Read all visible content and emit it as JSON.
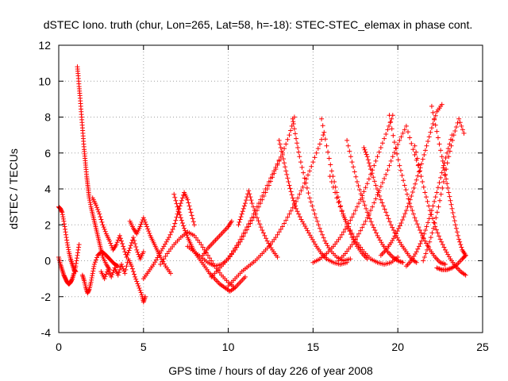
{
  "chart_data": {
    "type": "scatter",
    "title": "dSTEC Iono. truth (chur, Lon=265, Lat=58, h=-18): STEC-STEC_elemax in phase cont.",
    "xlabel": "GPS time / hours of day 226 of year 2008",
    "ylabel": "dSTEC  / TECUs",
    "xlim": [
      0,
      25
    ],
    "ylim": [
      -4,
      12
    ],
    "xticks": [
      0,
      5,
      10,
      15,
      20,
      25
    ],
    "yticks": [
      -4,
      -2,
      0,
      2,
      4,
      6,
      8,
      10,
      12
    ],
    "grid": true,
    "marker": "plus",
    "color": "#ff0000",
    "series": [
      {
        "name": "",
        "x": [
          0.0,
          0.1,
          0.2,
          0.3,
          0.4,
          0.5,
          0.6,
          0.7,
          0.8,
          0.9,
          1.0
        ],
        "y": [
          3.0,
          2.9,
          2.7,
          2.2,
          1.6,
          1.0,
          0.5,
          0.1,
          -0.2,
          -0.5,
          -0.6
        ]
      },
      {
        "name": "",
        "x": [
          0.0,
          0.1,
          0.2,
          0.3,
          0.4,
          0.5,
          0.6,
          0.7,
          0.8,
          0.9,
          1.0,
          1.1,
          1.2
        ],
        "y": [
          0.2,
          -0.2,
          -0.5,
          -0.8,
          -1.0,
          -1.2,
          -1.3,
          -1.2,
          -1.0,
          -0.7,
          -0.3,
          0.3,
          0.9
        ]
      },
      {
        "name": "",
        "x": [
          1.1,
          1.15,
          1.2,
          1.25,
          1.3,
          1.35,
          1.4,
          1.45,
          1.5,
          1.55,
          1.6,
          1.65,
          1.7,
          1.75,
          1.8,
          1.9,
          2.0,
          2.1,
          2.2,
          2.3,
          2.4,
          2.5,
          2.6,
          2.8,
          3.0
        ],
        "y": [
          10.8,
          10.3,
          9.7,
          9.2,
          8.6,
          8.0,
          7.4,
          6.8,
          6.2,
          5.7,
          5.2,
          4.7,
          4.3,
          3.9,
          3.5,
          3.0,
          2.6,
          2.2,
          1.8,
          1.4,
          1.0,
          0.6,
          0.2,
          -0.2,
          -0.5
        ]
      },
      {
        "name": "",
        "x": [
          1.4,
          1.5,
          1.6,
          1.7,
          1.8,
          1.9,
          2.0,
          2.1,
          2.3,
          2.5,
          2.7,
          2.9,
          3.1,
          3.3,
          3.5
        ],
        "y": [
          -0.8,
          -1.1,
          -1.5,
          -1.8,
          -1.6,
          -1.2,
          -0.7,
          -0.2,
          0.3,
          0.5,
          0.4,
          0.2,
          0.0,
          -0.2,
          -0.3
        ]
      },
      {
        "name": "",
        "x": [
          2.0,
          2.2,
          2.4,
          2.6,
          2.8,
          3.0,
          3.2,
          3.4,
          3.6,
          3.8,
          4.0,
          4.2,
          4.4,
          4.6,
          4.8,
          5.0
        ],
        "y": [
          3.5,
          3.1,
          2.6,
          2.0,
          1.5,
          1.1,
          0.6,
          0.9,
          1.4,
          0.8,
          0.2,
          0.7,
          1.3,
          0.6,
          0.1,
          0.5
        ]
      },
      {
        "name": "",
        "x": [
          2.5,
          2.7,
          2.9,
          3.1,
          3.3,
          3.5,
          3.7,
          3.9,
          4.1,
          4.3,
          4.5,
          4.7,
          4.9,
          5.0,
          5.1
        ],
        "y": [
          -0.6,
          -1.0,
          -0.5,
          -0.9,
          -0.4,
          -0.8,
          -0.2,
          -0.7,
          0.1,
          -0.3,
          -0.9,
          -1.4,
          -1.9,
          -2.3,
          -2.0
        ]
      },
      {
        "name": "",
        "x": [
          4.2,
          4.4,
          4.6,
          4.8,
          5.0,
          5.2,
          5.4,
          5.6,
          5.8,
          6.0,
          6.3,
          6.6
        ],
        "y": [
          2.2,
          1.8,
          1.5,
          1.9,
          2.4,
          1.9,
          1.4,
          1.0,
          0.6,
          0.2,
          -0.3,
          -0.7
        ]
      },
      {
        "name": "",
        "x": [
          5.0,
          5.3,
          5.6,
          5.9,
          6.2,
          6.5,
          6.8,
          7.0,
          7.2,
          7.4,
          7.6,
          7.8,
          8.0
        ],
        "y": [
          -1.0,
          -0.6,
          -0.2,
          0.3,
          0.8,
          1.3,
          1.9,
          2.6,
          3.2,
          3.8,
          3.4,
          2.7,
          2.0
        ]
      },
      {
        "name": "",
        "x": [
          6.8,
          7.0,
          7.2,
          7.4,
          7.6,
          7.8,
          8.0,
          8.3,
          8.6,
          8.9,
          9.2,
          9.5,
          9.8,
          10.1,
          10.4,
          10.7,
          11.0
        ],
        "y": [
          3.7,
          3.0,
          2.4,
          1.8,
          1.3,
          0.9,
          0.5,
          0.1,
          -0.3,
          -0.7,
          -1.0,
          -1.3,
          -1.5,
          -1.7,
          -1.5,
          -1.2,
          -0.9
        ]
      },
      {
        "name": "",
        "x": [
          6.0,
          6.4,
          6.8,
          7.2,
          7.6,
          8.0,
          8.4,
          8.8,
          9.2,
          9.6,
          10.0,
          10.4
        ],
        "y": [
          -0.2,
          0.4,
          0.9,
          1.3,
          1.6,
          1.4,
          0.9,
          0.3,
          -0.3,
          -0.8,
          -1.2,
          -1.5
        ]
      },
      {
        "name": "",
        "x": [
          7.6,
          8.0,
          8.4,
          8.8,
          9.2,
          9.6,
          10.0,
          10.4,
          10.8,
          11.2,
          11.6,
          12.0,
          12.4,
          12.8,
          13.2,
          13.6,
          13.9
        ],
        "y": [
          0.8,
          0.5,
          0.2,
          -0.1,
          -0.3,
          -0.2,
          0.1,
          0.6,
          1.2,
          1.9,
          2.6,
          3.4,
          4.2,
          5.1,
          6.0,
          7.0,
          8.0
        ]
      },
      {
        "name": "",
        "x": [
          8.5,
          8.8,
          9.1,
          9.4,
          9.7,
          10.0,
          10.2
        ],
        "y": [
          0.3,
          0.7,
          1.0,
          1.3,
          1.6,
          1.9,
          2.2
        ]
      },
      {
        "name": "",
        "x": [
          10.0,
          10.4,
          10.8,
          11.2,
          11.6,
          12.0,
          12.4,
          12.8,
          13.2,
          13.6,
          14.0,
          14.4,
          14.8,
          15.2,
          15.6
        ],
        "y": [
          -1.4,
          -1.0,
          -0.6,
          -0.3,
          0.0,
          0.4,
          0.8,
          1.3,
          1.9,
          2.6,
          3.3,
          4.1,
          5.0,
          6.0,
          7.0
        ]
      },
      {
        "name": "",
        "x": [
          9.0,
          9.4,
          9.8,
          10.2,
          10.6,
          11.0,
          11.4,
          11.8,
          12.2,
          12.6,
          13.0
        ],
        "y": [
          -0.9,
          -0.5,
          -0.1,
          0.4,
          1.0,
          1.7,
          2.4,
          3.2,
          4.0,
          4.8,
          5.6
        ]
      },
      {
        "name": "",
        "x": [
          10.6,
          10.8,
          11.0,
          11.2,
          11.4,
          11.7,
          12.0,
          12.3,
          12.6,
          12.9
        ],
        "y": [
          2.0,
          2.6,
          3.2,
          3.9,
          3.2,
          2.4,
          1.7,
          1.1,
          0.6,
          0.2
        ]
      },
      {
        "name": "",
        "x": [
          13.0,
          13.2,
          13.4,
          13.6,
          13.8,
          14.0,
          14.3,
          14.6,
          14.9,
          15.2,
          15.5,
          15.8,
          16.2,
          16.6,
          17.0
        ],
        "y": [
          6.7,
          5.9,
          5.0,
          4.2,
          3.5,
          2.9,
          2.3,
          1.8,
          1.3,
          0.8,
          0.4,
          0.1,
          -0.1,
          -0.2,
          -0.1
        ]
      },
      {
        "name": "",
        "x": [
          13.8,
          14.0,
          14.2,
          14.5,
          14.8,
          15.1,
          15.4,
          15.7,
          16.0,
          16.4,
          16.8,
          17.2
        ],
        "y": [
          7.9,
          6.8,
          5.8,
          4.6,
          3.5,
          2.6,
          1.8,
          1.1,
          0.6,
          0.2,
          0.0,
          0.1
        ]
      },
      {
        "name": "",
        "x": [
          15.0,
          15.4,
          15.8,
          16.2,
          16.6,
          17.0,
          17.4,
          17.8,
          18.2,
          18.6,
          19.0,
          19.4,
          19.7
        ],
        "y": [
          -0.1,
          0.1,
          0.4,
          0.8,
          1.3,
          1.9,
          2.6,
          3.4,
          4.3,
          5.3,
          6.3,
          7.3,
          8.1
        ]
      },
      {
        "name": "",
        "x": [
          15.5,
          15.8,
          16.1,
          16.4,
          16.7,
          17.0,
          17.3,
          17.6,
          17.9,
          18.2
        ],
        "y": [
          7.9,
          6.4,
          5.0,
          3.8,
          2.8,
          2.0,
          1.3,
          0.8,
          0.4,
          0.1
        ]
      },
      {
        "name": "",
        "x": [
          16.0,
          16.4,
          16.8,
          17.2,
          17.6,
          18.0,
          18.4,
          18.8,
          19.2,
          19.6,
          20.0
        ],
        "y": [
          4.7,
          3.5,
          2.5,
          1.7,
          1.0,
          0.5,
          0.1,
          -0.1,
          -0.2,
          -0.1,
          0.2
        ]
      },
      {
        "name": "",
        "x": [
          16.5,
          16.9,
          17.3,
          17.7,
          18.1,
          18.5,
          18.9,
          19.3,
          19.7,
          20.1,
          20.5,
          20.9,
          21.3
        ],
        "y": [
          0.0,
          0.4,
          0.9,
          1.5,
          2.2,
          3.0,
          3.9,
          4.8,
          5.8,
          6.7,
          7.5,
          6.2,
          5.0
        ]
      },
      {
        "name": "",
        "x": [
          17.0,
          17.3,
          17.6,
          17.9,
          18.2,
          18.5,
          18.8,
          19.1,
          19.4,
          19.7,
          20.0,
          20.3
        ],
        "y": [
          6.7,
          5.5,
          4.4,
          3.5,
          2.7,
          2.0,
          1.4,
          0.9,
          0.5,
          0.2,
          0.0,
          -0.1
        ]
      },
      {
        "name": "",
        "x": [
          18.0,
          18.2,
          18.4,
          18.7,
          19.0,
          19.3,
          19.6,
          19.9,
          20.2,
          20.5,
          20.8,
          21.1
        ],
        "y": [
          6.3,
          5.8,
          5.1,
          4.2,
          3.4,
          2.7,
          2.0,
          1.4,
          0.9,
          0.5,
          0.1,
          -0.1
        ]
      },
      {
        "name": "",
        "x": [
          19.0,
          19.3,
          19.6,
          19.9,
          20.2,
          20.5,
          20.8,
          21.1,
          21.4,
          21.7,
          22.0,
          22.3,
          22.6
        ],
        "y": [
          0.3,
          0.6,
          1.0,
          1.5,
          2.1,
          2.8,
          3.6,
          4.5,
          5.4,
          6.4,
          7.4,
          8.3,
          8.7
        ]
      },
      {
        "name": "",
        "x": [
          19.5,
          19.8,
          20.1,
          20.4,
          20.7,
          21.0,
          21.3,
          21.6,
          21.9,
          22.2,
          22.5,
          22.8
        ],
        "y": [
          8.1,
          6.6,
          5.3,
          4.2,
          3.2,
          2.4,
          1.7,
          1.1,
          0.6,
          0.2,
          -0.1,
          -0.2
        ]
      },
      {
        "name": "",
        "x": [
          20.5,
          20.8,
          21.1,
          21.4,
          21.7,
          22.0,
          22.3,
          22.6,
          22.9,
          23.2
        ],
        "y": [
          -0.3,
          0.0,
          0.5,
          1.1,
          1.9,
          2.8,
          3.8,
          4.9,
          6.0,
          7.0
        ]
      },
      {
        "name": "",
        "x": [
          21.0,
          21.3,
          21.6,
          21.9,
          22.2,
          22.5,
          22.8,
          23.1,
          23.4,
          23.7,
          24.0
        ],
        "y": [
          6.4,
          5.0,
          3.8,
          2.8,
          1.9,
          1.2,
          0.6,
          0.1,
          -0.3,
          -0.6,
          -0.8
        ]
      },
      {
        "name": "",
        "x": [
          21.5,
          21.8,
          22.1,
          22.4,
          22.7,
          23.0,
          23.3,
          23.6,
          23.9
        ],
        "y": [
          0.0,
          0.8,
          1.8,
          3.0,
          4.4,
          5.8,
          7.0,
          7.9,
          7.1
        ]
      },
      {
        "name": "",
        "x": [
          22.0,
          22.3,
          22.6,
          22.8,
          23.0,
          23.2,
          23.4,
          23.6,
          23.8,
          24.0
        ],
        "y": [
          8.6,
          7.2,
          5.8,
          4.8,
          3.8,
          2.9,
          2.0,
          1.2,
          0.6,
          0.3
        ]
      },
      {
        "name": "",
        "x": [
          22.3,
          22.6,
          22.9,
          23.2,
          23.5,
          23.8,
          24.0
        ],
        "y": [
          -0.4,
          -0.5,
          -0.5,
          -0.4,
          -0.2,
          0.1,
          0.3
        ]
      }
    ]
  }
}
